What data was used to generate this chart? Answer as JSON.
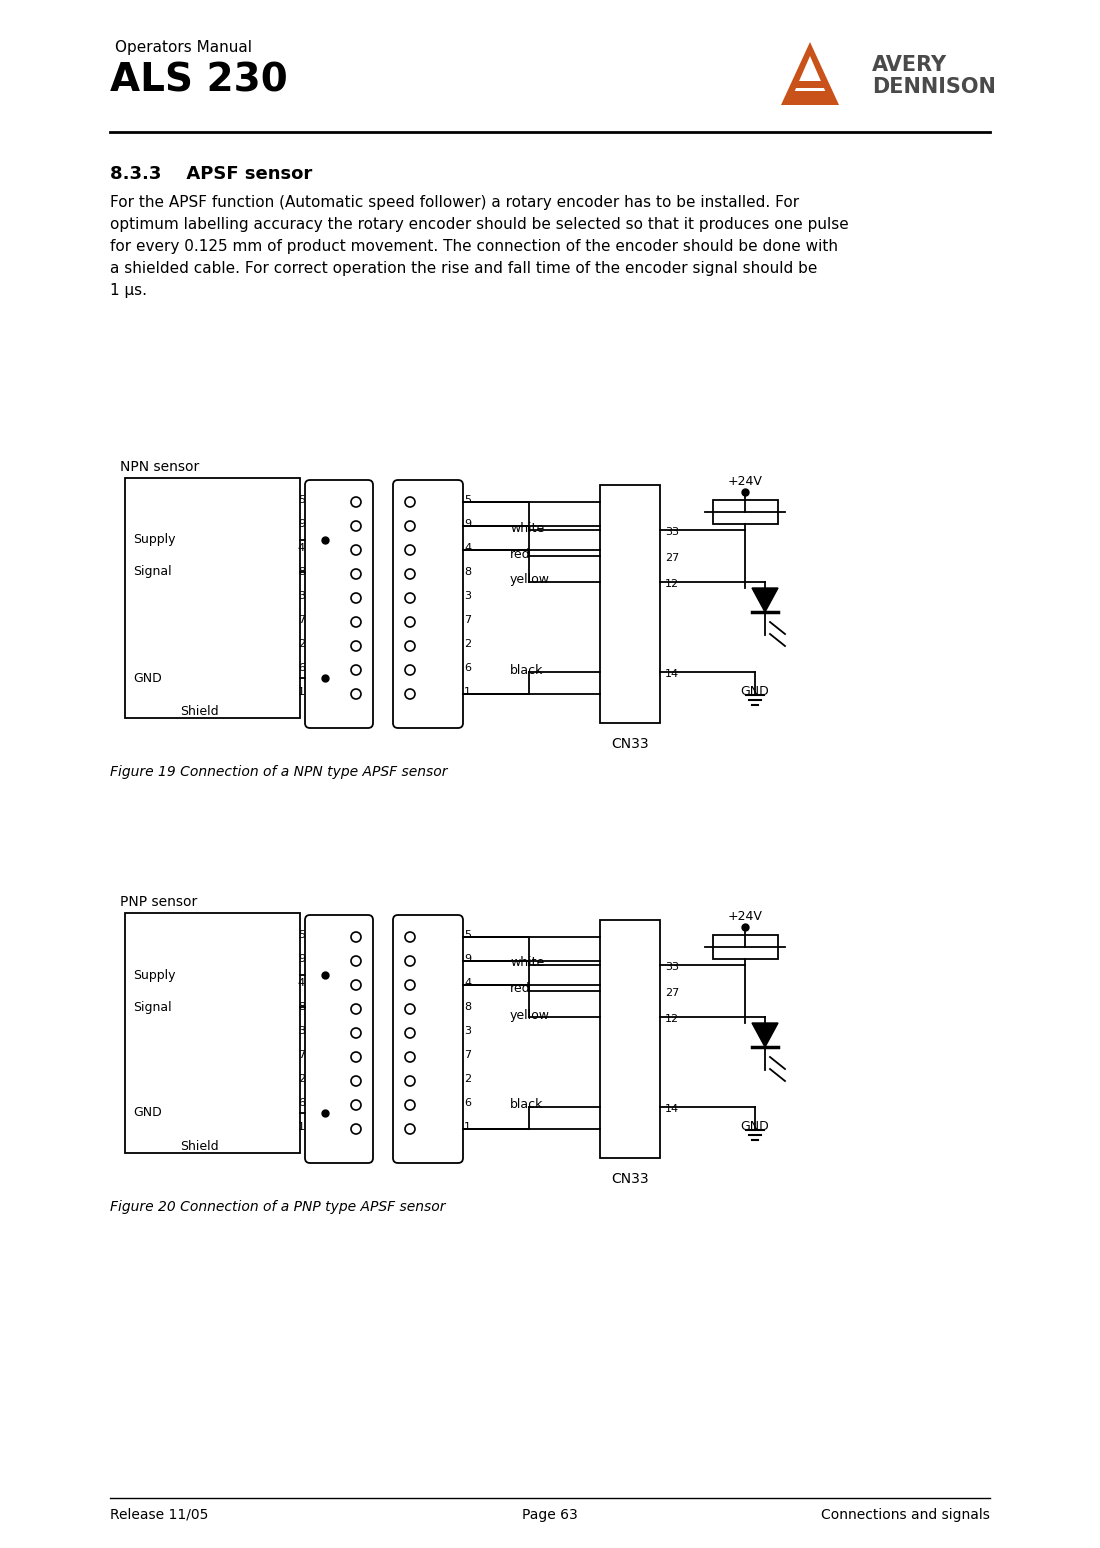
{
  "page_title_small": "Operators Manual",
  "page_title_large": "ALS 230",
  "section_title": "8.3.3    APSF sensor",
  "body_text": "For the APSF function (Automatic speed follower) a rotary encoder has to be installed. For\noptimum labelling accuracy the rotary encoder should be selected so that it produces one pulse\nfor every 0.125 mm of product movement. The connection of the encoder should be done with\na shielded cable. For correct operation the rise and fall time of the encoder signal should be\n1 μs.",
  "fig1_caption": "Figure 19 Connection of a NPN type APSF sensor",
  "fig2_caption": "Figure 20 Connection of a PNP type APSF sensor",
  "npn_label": "NPN sensor",
  "pnp_label": "PNP sensor",
  "supply_label": "Supply",
  "signal_label": "Signal",
  "gnd_label": "GND",
  "shield_label": "Shield",
  "cn33_label": "CN33",
  "v24_label": "+24V",
  "gnd_bottom_label": "GND",
  "white_label": "white",
  "red_label": "red",
  "yellow_label": "yellow",
  "black_label": "black",
  "connector1_pins": [
    "5",
    "9",
    "4",
    "8",
    "3",
    "7",
    "2",
    "6",
    "1"
  ],
  "connector2_pins": [
    "5",
    "9",
    "4",
    "8",
    "3",
    "7",
    "2",
    "6",
    "1"
  ],
  "cn33_pins": [
    "33",
    "27",
    "12",
    "14"
  ],
  "footer_left": "Release 11/05",
  "footer_center": "Page 63",
  "footer_right": "Connections and signals",
  "bg_color": "#ffffff",
  "text_color": "#000000",
  "logo_triangle_color": "#c8521a",
  "logo_text_color": "#4a4a4a"
}
